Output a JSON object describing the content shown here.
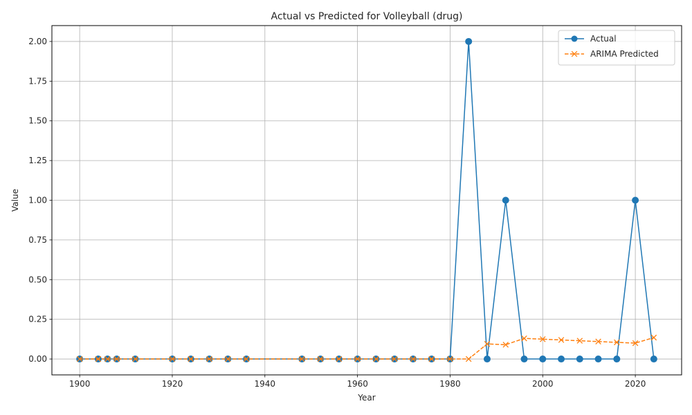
{
  "chart_data": {
    "type": "line",
    "title": "Actual vs Predicted for Volleyball (drug)",
    "xlabel": "Year",
    "ylabel": "Value",
    "xlim": [
      1894,
      2030
    ],
    "ylim": [
      -0.1,
      2.1
    ],
    "xticks": [
      1900,
      1920,
      1940,
      1960,
      1980,
      2000,
      2020
    ],
    "yticks": [
      0.0,
      0.25,
      0.5,
      0.75,
      1.0,
      1.25,
      1.5,
      1.75,
      2.0
    ],
    "ytick_labels": [
      "0.00",
      "0.25",
      "0.50",
      "0.75",
      "1.00",
      "1.25",
      "1.50",
      "1.75",
      "2.00"
    ],
    "grid": true,
    "legend_position": "top-right",
    "x": [
      1900,
      1904,
      1906,
      1908,
      1912,
      1920,
      1924,
      1928,
      1932,
      1936,
      1948,
      1952,
      1956,
      1960,
      1964,
      1968,
      1972,
      1976,
      1980,
      1984,
      1988,
      1992,
      1996,
      2000,
      2004,
      2008,
      2012,
      2016,
      2020,
      2024
    ],
    "series": [
      {
        "name": "Actual",
        "color": "#1f77b4",
        "marker": "circle",
        "linestyle": "solid",
        "values": [
          0,
          0,
          0,
          0,
          0,
          0,
          0,
          0,
          0,
          0,
          0,
          0,
          0,
          0,
          0,
          0,
          0,
          0,
          0,
          2,
          0,
          1,
          0,
          0,
          0,
          0,
          0,
          0,
          1,
          0
        ]
      },
      {
        "name": "ARIMA Predicted",
        "color": "#ff7f0e",
        "marker": "x",
        "linestyle": "dashed",
        "values": [
          0,
          0,
          0,
          0,
          0,
          0,
          0,
          0,
          0,
          0,
          0,
          0,
          0,
          0,
          0,
          0,
          0,
          0,
          0,
          0,
          0.095,
          0.09,
          0.13,
          0.125,
          0.12,
          0.115,
          0.11,
          0.105,
          0.1,
          0.135
        ]
      }
    ]
  }
}
